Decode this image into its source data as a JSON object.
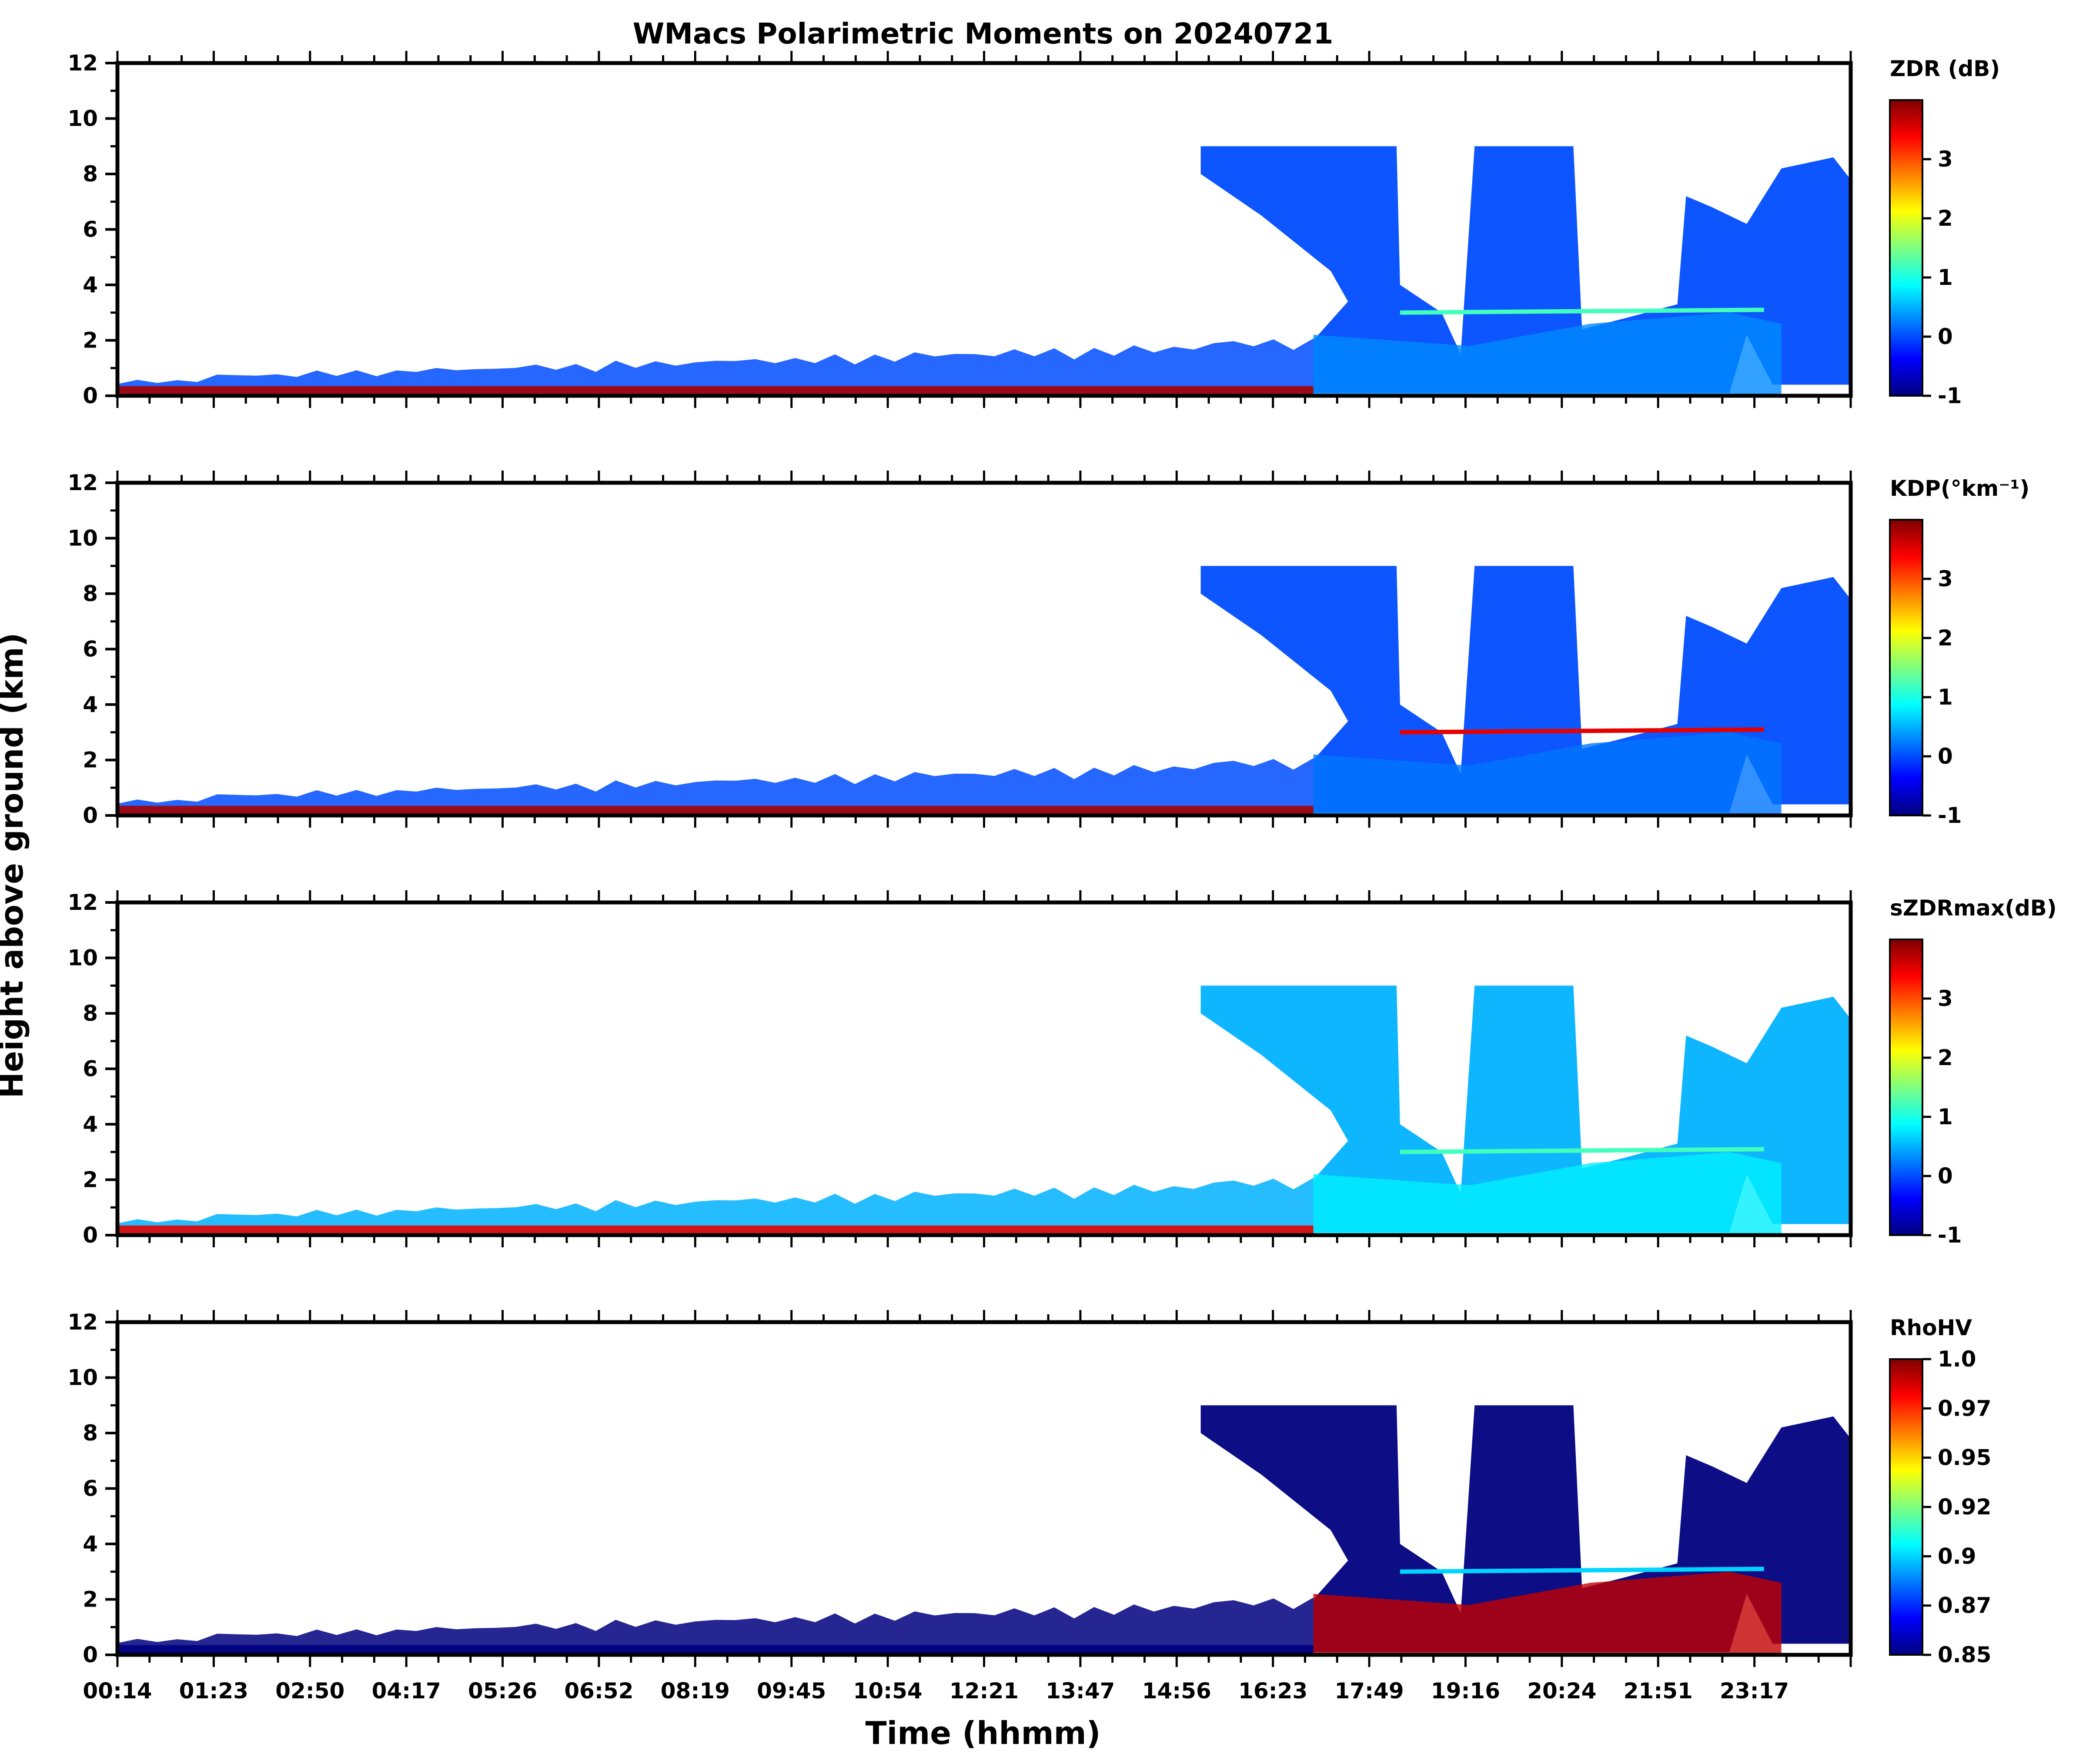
{
  "chart_data": {
    "type": "heatmap",
    "title": "WMacs Polarimetric Moments on 20240721",
    "xlabel": "Time (hhmm)",
    "ylabel": "Height above ground (km)",
    "x_tick_labels": [
      "00:14",
      "01:23",
      "02:50",
      "04:17",
      "05:26",
      "06:52",
      "08:19",
      "09:45",
      "10:54",
      "12:21",
      "13:47",
      "14:56",
      "16:23",
      "17:49",
      "19:16",
      "20:24",
      "21:51",
      "23:17"
    ],
    "y_ticks": [
      0,
      2,
      4,
      6,
      8,
      10,
      12
    ],
    "ylim": [
      0,
      12
    ],
    "panels": [
      {
        "name": "zdr",
        "colorbar_title": "ZDR (dB)",
        "colorbar_ticks": [
          "3",
          "2",
          "1",
          "0",
          "-1"
        ],
        "vmin": -1,
        "vmax": 4,
        "dominant_value": 0,
        "background_value": 0.3
      },
      {
        "name": "kdp",
        "colorbar_title": "KDP(°km⁻¹)",
        "colorbar_ticks": [
          "3",
          "2",
          "1",
          "0",
          "-1"
        ],
        "vmin": -1,
        "vmax": 4,
        "dominant_value": 0,
        "background_value": 0.2
      },
      {
        "name": "szdrmax",
        "colorbar_title": "sZDRmax(dB)",
        "colorbar_ticks": [
          "3",
          "2",
          "1",
          "0",
          "-1"
        ],
        "vmin": -1,
        "vmax": 4,
        "dominant_value": 0.5,
        "background_value": 0.8
      },
      {
        "name": "rhohv",
        "colorbar_title": "RhoHV",
        "colorbar_ticks": [
          "1.0",
          "0.97",
          "0.95",
          "0.92",
          "0.9",
          "0.87",
          "0.85"
        ],
        "vmin": 0.85,
        "vmax": 1.0,
        "dominant_value": 0.85,
        "background_value": 0.99
      }
    ],
    "echo_regions": {
      "boundary_layer_top_km": [
        0.5,
        0.7,
        0.8,
        0.9,
        1.0,
        1.1,
        1.2,
        1.3,
        1.4,
        1.5,
        1.6,
        1.8
      ],
      "upper_cloud_start": "14:56",
      "upper_cloud_top_km": 9
    }
  },
  "colors": {
    "jet": [
      "#00007f",
      "#0000ff",
      "#007fff",
      "#00ffff",
      "#7fff7f",
      "#ffff00",
      "#ff7f00",
      "#ff0000",
      "#7f0000"
    ]
  }
}
